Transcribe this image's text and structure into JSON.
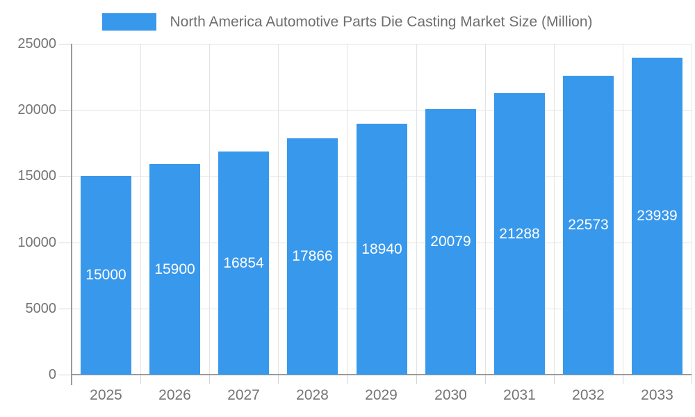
{
  "chart_data": {
    "type": "bar",
    "title": "North America Automotive Parts Die Casting Market Size (Million)",
    "legend": [
      {
        "label": "North America Automotive Parts Die Casting Market Size (Million)"
      }
    ],
    "legend_position": "top",
    "categories": [
      "2025",
      "2026",
      "2027",
      "2028",
      "2029",
      "2030",
      "2031",
      "2032",
      "2033"
    ],
    "series": [
      {
        "name": "North America Automotive Parts Die Casting Market Size (Million)",
        "values": [
          15000,
          15900,
          16854,
          17866,
          18940,
          20079,
          21288,
          22573,
          23939
        ]
      }
    ],
    "value_labels_shown": true,
    "xlabel": "",
    "ylabel": "",
    "ylim": [
      0,
      25000
    ],
    "yticks": [
      0,
      5000,
      10000,
      15000,
      20000,
      25000
    ],
    "grid": true,
    "colors": {
      "bar": "#3898EC",
      "bar_value_label": "#FFFFFF",
      "axis": "#9A9A9A",
      "gridline": "#E3E3E3",
      "tick_mark": "#D4D4D4",
      "tick_label": "#757575",
      "title": "#6E6E6E",
      "background": "#FFFFFF"
    }
  }
}
